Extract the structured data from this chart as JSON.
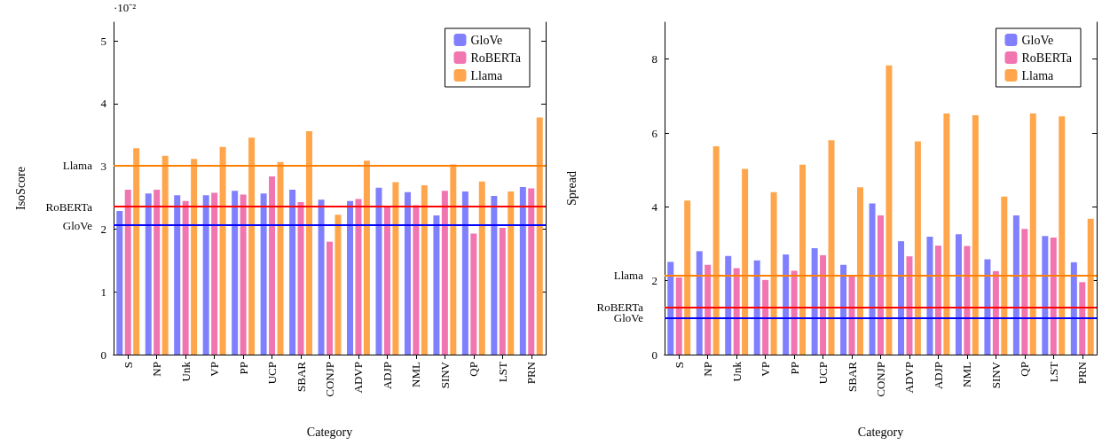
{
  "chart_data": [
    {
      "type": "bar",
      "xlabel": "Category",
      "ylabel": "IsoScore",
      "annotations": [
        "·10⁻²"
      ],
      "legend": "top right",
      "grid": false,
      "categories": [
        "S",
        "NP",
        "Unk",
        "VP",
        "PP",
        "UCP",
        "SBAR",
        "CONJP",
        "ADVP",
        "ADJP",
        "NML",
        "SINV",
        "QP",
        "LST",
        "PRN"
      ],
      "ylim": [
        0,
        5.3
      ],
      "yticks": [
        0,
        1,
        2,
        3,
        4,
        5
      ],
      "series": [
        {
          "name": "GloVe",
          "color": "#8080ff",
          "values": [
            2.29,
            2.57,
            2.54,
            2.54,
            2.61,
            2.57,
            2.63,
            2.47,
            2.45,
            2.66,
            2.59,
            2.22,
            2.6,
            2.53,
            2.67
          ]
        },
        {
          "name": "RoBERTa",
          "color": "#f075b0",
          "values": [
            2.63,
            2.63,
            2.45,
            2.58,
            2.55,
            2.84,
            2.43,
            1.8,
            2.48,
            2.37,
            2.38,
            2.61,
            1.93,
            2.02,
            2.65
          ]
        },
        {
          "name": "Llama",
          "color": "#ffa64d",
          "values": [
            3.29,
            3.17,
            3.12,
            3.31,
            3.46,
            3.07,
            3.56,
            2.23,
            3.09,
            2.75,
            2.7,
            3.03,
            2.76,
            2.6,
            3.78
          ]
        }
      ],
      "ref_lines": [
        {
          "axis": "y",
          "value": 3.02,
          "label": "Llama",
          "color": "#ff8000"
        },
        {
          "axis": "y",
          "value": 2.36,
          "label": "RoBERTa",
          "color": "#ff0000"
        },
        {
          "axis": "y",
          "value": 2.06,
          "label": "GloVe",
          "color": "#0000ff"
        }
      ]
    },
    {
      "type": "bar",
      "xlabel": "Category",
      "ylabel": "Spread",
      "legend": "top right",
      "grid": false,
      "categories": [
        "S",
        "NP",
        "Unk",
        "VP",
        "PP",
        "UCP",
        "SBAR",
        "CONJP",
        "ADVP",
        "ADJP",
        "NML",
        "SINV",
        "QP",
        "LST",
        "PRN"
      ],
      "ylim": [
        0,
        9
      ],
      "yticks": [
        0,
        2,
        4,
        6,
        8
      ],
      "series": [
        {
          "name": "GloVe",
          "color": "#8080ff",
          "values": [
            2.51,
            2.8,
            2.67,
            2.55,
            2.71,
            2.88,
            2.43,
            4.09,
            3.07,
            3.19,
            3.26,
            2.58,
            3.77,
            3.21,
            2.5
          ]
        },
        {
          "name": "RoBERTa",
          "color": "#f075b0",
          "values": [
            2.09,
            2.43,
            2.34,
            2.02,
            2.27,
            2.69,
            2.16,
            3.77,
            2.66,
            2.95,
            2.94,
            2.26,
            3.4,
            3.17,
            1.96
          ]
        },
        {
          "name": "Llama",
          "color": "#ffa64d",
          "values": [
            4.17,
            5.64,
            5.03,
            4.4,
            5.14,
            5.8,
            4.53,
            7.83,
            5.77,
            6.53,
            6.48,
            4.28,
            6.53,
            6.45,
            3.68
          ]
        }
      ],
      "ref_lines": [
        {
          "axis": "y",
          "value": 2.15,
          "label": "Llama",
          "color": "#ff8000"
        },
        {
          "axis": "y",
          "value": 1.28,
          "label": "RoBERTa",
          "color": "#ff0000"
        },
        {
          "axis": "y",
          "value": 1.0,
          "label": "GloVe",
          "color": "#0000ff"
        }
      ]
    }
  ]
}
